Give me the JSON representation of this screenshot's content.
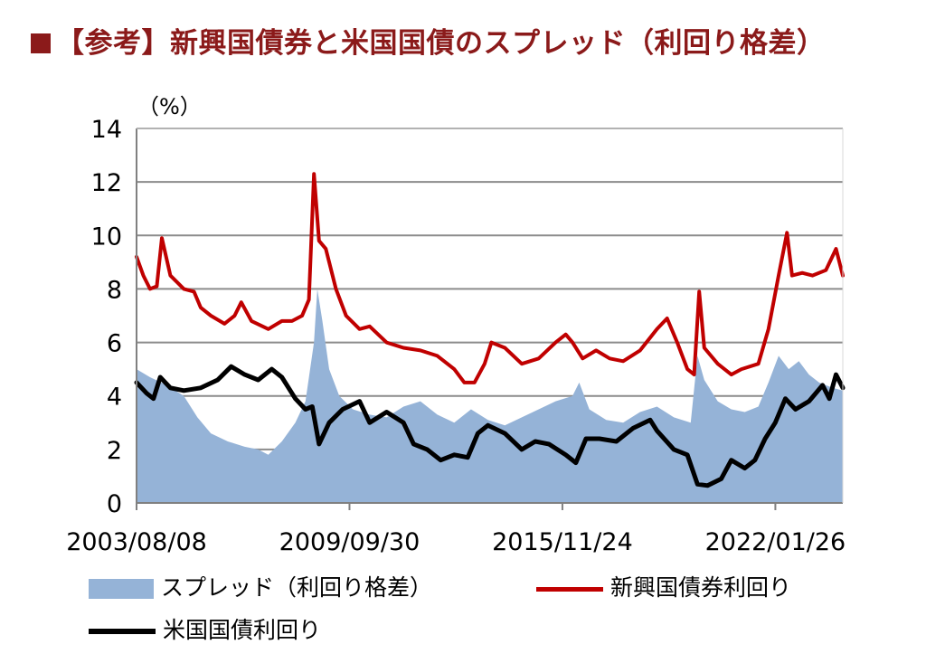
{
  "header": {
    "title": "【参考】新興国債券と米国国債のスプレッド（利回り格差）"
  },
  "chart_data": {
    "type": "line",
    "title": "【参考】新興国債券と米国国債のスプレッド（利回り格差）",
    "ylabel": "（%）",
    "ylim": [
      0,
      14
    ],
    "yticks": [
      "0",
      "2",
      "4",
      "6",
      "8",
      "10",
      "12",
      "14"
    ],
    "xticks": [
      "2003/08/08",
      "2009/09/30",
      "2015/11/24",
      "2022/01/26"
    ],
    "x_range": [
      2003.6,
      2024.5
    ],
    "grid": true,
    "legend_position": "bottom",
    "series": [
      {
        "name": "スプレッド（利回り格差）",
        "kind": "area",
        "color": "#95B3D7",
        "points": [
          [
            2003.6,
            5.0
          ],
          [
            2004.0,
            4.7
          ],
          [
            2004.5,
            4.4
          ],
          [
            2005.0,
            4.0
          ],
          [
            2005.4,
            3.2
          ],
          [
            2005.8,
            2.6
          ],
          [
            2006.3,
            2.3
          ],
          [
            2006.8,
            2.1
          ],
          [
            2007.2,
            2.0
          ],
          [
            2007.5,
            1.8
          ],
          [
            2007.9,
            2.3
          ],
          [
            2008.3,
            3.0
          ],
          [
            2008.6,
            3.8
          ],
          [
            2008.85,
            6.0
          ],
          [
            2008.95,
            8.0
          ],
          [
            2009.1,
            6.8
          ],
          [
            2009.3,
            5.0
          ],
          [
            2009.6,
            4.0
          ],
          [
            2010.0,
            3.5
          ],
          [
            2010.5,
            3.3
          ],
          [
            2011.0,
            3.2
          ],
          [
            2011.5,
            3.6
          ],
          [
            2012.0,
            3.8
          ],
          [
            2012.5,
            3.3
          ],
          [
            2013.0,
            3.0
          ],
          [
            2013.5,
            3.5
          ],
          [
            2014.0,
            3.1
          ],
          [
            2014.5,
            2.9
          ],
          [
            2015.0,
            3.2
          ],
          [
            2015.5,
            3.5
          ],
          [
            2016.0,
            3.8
          ],
          [
            2016.5,
            4.0
          ],
          [
            2016.7,
            4.5
          ],
          [
            2017.0,
            3.5
          ],
          [
            2017.5,
            3.1
          ],
          [
            2018.0,
            3.0
          ],
          [
            2018.5,
            3.4
          ],
          [
            2019.0,
            3.6
          ],
          [
            2019.5,
            3.2
          ],
          [
            2020.0,
            3.0
          ],
          [
            2020.2,
            5.5
          ],
          [
            2020.4,
            4.6
          ],
          [
            2020.8,
            3.8
          ],
          [
            2021.2,
            3.5
          ],
          [
            2021.6,
            3.4
          ],
          [
            2022.0,
            3.6
          ],
          [
            2022.3,
            4.5
          ],
          [
            2022.6,
            5.5
          ],
          [
            2022.9,
            5.0
          ],
          [
            2023.2,
            5.3
          ],
          [
            2023.5,
            4.8
          ],
          [
            2023.8,
            4.5
          ],
          [
            2024.2,
            4.3
          ],
          [
            2024.5,
            4.2
          ]
        ]
      },
      {
        "name": "新興国債券利回り",
        "kind": "line",
        "color": "#C00000",
        "points": [
          [
            2003.6,
            9.2
          ],
          [
            2003.8,
            8.5
          ],
          [
            2004.0,
            8.0
          ],
          [
            2004.2,
            8.1
          ],
          [
            2004.35,
            9.9
          ],
          [
            2004.6,
            8.5
          ],
          [
            2005.0,
            8.0
          ],
          [
            2005.3,
            7.9
          ],
          [
            2005.5,
            7.3
          ],
          [
            2005.8,
            7.0
          ],
          [
            2006.2,
            6.7
          ],
          [
            2006.5,
            7.0
          ],
          [
            2006.7,
            7.5
          ],
          [
            2007.0,
            6.8
          ],
          [
            2007.5,
            6.5
          ],
          [
            2007.9,
            6.8
          ],
          [
            2008.2,
            6.8
          ],
          [
            2008.5,
            7.0
          ],
          [
            2008.7,
            7.6
          ],
          [
            2008.85,
            12.3
          ],
          [
            2009.0,
            9.8
          ],
          [
            2009.2,
            9.5
          ],
          [
            2009.5,
            8.0
          ],
          [
            2009.8,
            7.0
          ],
          [
            2010.2,
            6.5
          ],
          [
            2010.5,
            6.6
          ],
          [
            2011.0,
            6.0
          ],
          [
            2011.5,
            5.8
          ],
          [
            2012.0,
            5.7
          ],
          [
            2012.5,
            5.5
          ],
          [
            2013.0,
            5.0
          ],
          [
            2013.3,
            4.5
          ],
          [
            2013.6,
            4.5
          ],
          [
            2013.9,
            5.2
          ],
          [
            2014.1,
            6.0
          ],
          [
            2014.5,
            5.8
          ],
          [
            2015.0,
            5.2
          ],
          [
            2015.5,
            5.4
          ],
          [
            2016.0,
            6.0
          ],
          [
            2016.3,
            6.3
          ],
          [
            2016.5,
            6.0
          ],
          [
            2016.8,
            5.4
          ],
          [
            2017.2,
            5.7
          ],
          [
            2017.6,
            5.4
          ],
          [
            2018.0,
            5.3
          ],
          [
            2018.5,
            5.7
          ],
          [
            2019.0,
            6.5
          ],
          [
            2019.3,
            6.9
          ],
          [
            2019.6,
            6.0
          ],
          [
            2019.9,
            5.0
          ],
          [
            2020.1,
            4.8
          ],
          [
            2020.25,
            7.9
          ],
          [
            2020.4,
            5.8
          ],
          [
            2020.8,
            5.2
          ],
          [
            2021.2,
            4.8
          ],
          [
            2021.5,
            5.0
          ],
          [
            2022.0,
            5.2
          ],
          [
            2022.3,
            6.5
          ],
          [
            2022.6,
            8.5
          ],
          [
            2022.85,
            10.1
          ],
          [
            2023.0,
            8.5
          ],
          [
            2023.3,
            8.6
          ],
          [
            2023.6,
            8.5
          ],
          [
            2024.0,
            8.7
          ],
          [
            2024.3,
            9.5
          ],
          [
            2024.5,
            8.5
          ]
        ]
      },
      {
        "name": "米国国債利回り",
        "kind": "line",
        "color": "#000000",
        "points": [
          [
            2003.6,
            4.5
          ],
          [
            2003.9,
            4.1
          ],
          [
            2004.1,
            3.9
          ],
          [
            2004.3,
            4.7
          ],
          [
            2004.6,
            4.3
          ],
          [
            2005.0,
            4.2
          ],
          [
            2005.5,
            4.3
          ],
          [
            2006.0,
            4.6
          ],
          [
            2006.4,
            5.1
          ],
          [
            2006.8,
            4.8
          ],
          [
            2007.2,
            4.6
          ],
          [
            2007.6,
            5.0
          ],
          [
            2007.9,
            4.7
          ],
          [
            2008.3,
            3.9
          ],
          [
            2008.6,
            3.5
          ],
          [
            2008.8,
            3.6
          ],
          [
            2009.0,
            2.2
          ],
          [
            2009.3,
            3.0
          ],
          [
            2009.7,
            3.5
          ],
          [
            2010.2,
            3.8
          ],
          [
            2010.5,
            3.0
          ],
          [
            2011.0,
            3.4
          ],
          [
            2011.5,
            3.0
          ],
          [
            2011.8,
            2.2
          ],
          [
            2012.2,
            2.0
          ],
          [
            2012.6,
            1.6
          ],
          [
            2013.0,
            1.8
          ],
          [
            2013.4,
            1.7
          ],
          [
            2013.7,
            2.6
          ],
          [
            2014.0,
            2.9
          ],
          [
            2014.5,
            2.6
          ],
          [
            2015.0,
            2.0
          ],
          [
            2015.4,
            2.3
          ],
          [
            2015.8,
            2.2
          ],
          [
            2016.3,
            1.8
          ],
          [
            2016.6,
            1.5
          ],
          [
            2016.9,
            2.4
          ],
          [
            2017.3,
            2.4
          ],
          [
            2017.8,
            2.3
          ],
          [
            2018.3,
            2.8
          ],
          [
            2018.8,
            3.1
          ],
          [
            2019.0,
            2.7
          ],
          [
            2019.5,
            2.0
          ],
          [
            2019.9,
            1.8
          ],
          [
            2020.2,
            0.7
          ],
          [
            2020.5,
            0.65
          ],
          [
            2020.9,
            0.9
          ],
          [
            2021.2,
            1.6
          ],
          [
            2021.6,
            1.3
          ],
          [
            2021.9,
            1.6
          ],
          [
            2022.2,
            2.4
          ],
          [
            2022.5,
            3.0
          ],
          [
            2022.8,
            3.9
          ],
          [
            2023.1,
            3.5
          ],
          [
            2023.5,
            3.8
          ],
          [
            2023.9,
            4.4
          ],
          [
            2024.1,
            3.9
          ],
          [
            2024.3,
            4.8
          ],
          [
            2024.5,
            4.3
          ]
        ]
      }
    ]
  },
  "legend": {
    "spread_label": "スプレッド（利回り格差）",
    "em_label": "新興国債券利回り",
    "ust_label": "米国国債利回り"
  }
}
